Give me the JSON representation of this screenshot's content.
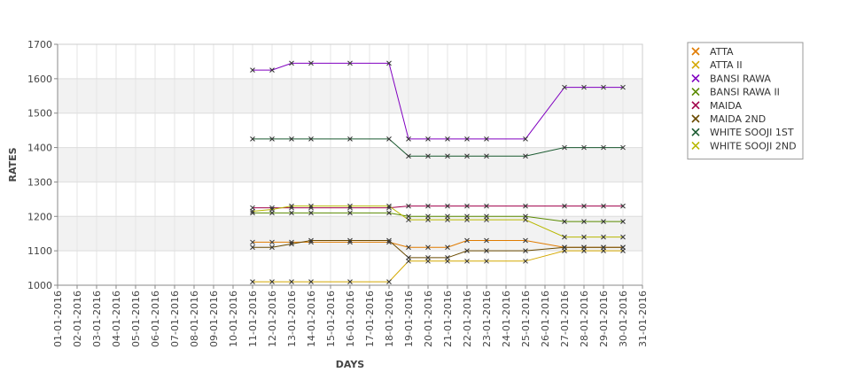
{
  "chart_data": {
    "type": "line",
    "title": "",
    "xlabel": "DAYS",
    "ylabel": "RATES",
    "ylim": [
      1000,
      1700
    ],
    "yticks": [
      1000,
      1100,
      1200,
      1300,
      1400,
      1500,
      1600,
      1700
    ],
    "grid": "horizontal bands",
    "legend": "right",
    "x": [
      "01-01-2016",
      "02-01-2016",
      "03-01-2016",
      "04-01-2016",
      "05-01-2016",
      "06-01-2016",
      "07-01-2016",
      "08-01-2016",
      "09-01-2016",
      "10-01-2016",
      "11-01-2016",
      "12-01-2016",
      "13-01-2016",
      "14-01-2016",
      "15-01-2016",
      "16-01-2016",
      "17-01-2016",
      "18-01-2016",
      "19-01-2016",
      "20-01-2016",
      "21-01-2016",
      "22-01-2016",
      "23-01-2016",
      "24-01-2016",
      "25-01-2016",
      "26-01-2016",
      "27-01-2016",
      "28-01-2016",
      "29-01-2016",
      "30-01-2016",
      "31-01-2016"
    ],
    "series": [
      {
        "name": "ATTA",
        "color": "#e07b00",
        "points": [
          [
            "11-01-2016",
            1125
          ],
          [
            "12-01-2016",
            1125
          ],
          [
            "13-01-2016",
            1125
          ],
          [
            "14-01-2016",
            1125
          ],
          [
            "16-01-2016",
            1125
          ],
          [
            "18-01-2016",
            1125
          ],
          [
            "19-01-2016",
            1110
          ],
          [
            "20-01-2016",
            1110
          ],
          [
            "21-01-2016",
            1110
          ],
          [
            "22-01-2016",
            1130
          ],
          [
            "23-01-2016",
            1130
          ],
          [
            "25-01-2016",
            1130
          ],
          [
            "27-01-2016",
            1110
          ],
          [
            "28-01-2016",
            1110
          ],
          [
            "29-01-2016",
            1110
          ],
          [
            "30-01-2016",
            1110
          ]
        ]
      },
      {
        "name": "ATTA II",
        "color": "#d4a800",
        "points": [
          [
            "11-01-2016",
            1010
          ],
          [
            "12-01-2016",
            1010
          ],
          [
            "13-01-2016",
            1010
          ],
          [
            "14-01-2016",
            1010
          ],
          [
            "16-01-2016",
            1010
          ],
          [
            "18-01-2016",
            1010
          ],
          [
            "19-01-2016",
            1070
          ],
          [
            "20-01-2016",
            1070
          ],
          [
            "21-01-2016",
            1070
          ],
          [
            "22-01-2016",
            1070
          ],
          [
            "23-01-2016",
            1070
          ],
          [
            "25-01-2016",
            1070
          ],
          [
            "27-01-2016",
            1100
          ],
          [
            "28-01-2016",
            1100
          ],
          [
            "29-01-2016",
            1100
          ],
          [
            "30-01-2016",
            1100
          ]
        ]
      },
      {
        "name": "BANSI RAWA",
        "color": "#8000c0",
        "points": [
          [
            "11-01-2016",
            1625
          ],
          [
            "12-01-2016",
            1625
          ],
          [
            "13-01-2016",
            1645
          ],
          [
            "14-01-2016",
            1645
          ],
          [
            "16-01-2016",
            1645
          ],
          [
            "18-01-2016",
            1645
          ],
          [
            "19-01-2016",
            1425
          ],
          [
            "20-01-2016",
            1425
          ],
          [
            "21-01-2016",
            1425
          ],
          [
            "22-01-2016",
            1425
          ],
          [
            "23-01-2016",
            1425
          ],
          [
            "25-01-2016",
            1425
          ],
          [
            "27-01-2016",
            1575
          ],
          [
            "28-01-2016",
            1575
          ],
          [
            "29-01-2016",
            1575
          ],
          [
            "30-01-2016",
            1575
          ]
        ]
      },
      {
        "name": "BANSI RAWA II",
        "color": "#5a8a00",
        "points": [
          [
            "11-01-2016",
            1210
          ],
          [
            "12-01-2016",
            1210
          ],
          [
            "13-01-2016",
            1210
          ],
          [
            "14-01-2016",
            1210
          ],
          [
            "16-01-2016",
            1210
          ],
          [
            "18-01-2016",
            1210
          ],
          [
            "19-01-2016",
            1200
          ],
          [
            "20-01-2016",
            1200
          ],
          [
            "21-01-2016",
            1200
          ],
          [
            "22-01-2016",
            1200
          ],
          [
            "23-01-2016",
            1200
          ],
          [
            "25-01-2016",
            1200
          ],
          [
            "27-01-2016",
            1185
          ],
          [
            "28-01-2016",
            1185
          ],
          [
            "29-01-2016",
            1185
          ],
          [
            "30-01-2016",
            1185
          ]
        ]
      },
      {
        "name": "MAIDA",
        "color": "#a0004a",
        "points": [
          [
            "11-01-2016",
            1225
          ],
          [
            "12-01-2016",
            1225
          ],
          [
            "13-01-2016",
            1225
          ],
          [
            "14-01-2016",
            1225
          ],
          [
            "16-01-2016",
            1225
          ],
          [
            "18-01-2016",
            1225
          ],
          [
            "19-01-2016",
            1230
          ],
          [
            "20-01-2016",
            1230
          ],
          [
            "21-01-2016",
            1230
          ],
          [
            "22-01-2016",
            1230
          ],
          [
            "23-01-2016",
            1230
          ],
          [
            "25-01-2016",
            1230
          ],
          [
            "27-01-2016",
            1230
          ],
          [
            "28-01-2016",
            1230
          ],
          [
            "29-01-2016",
            1230
          ],
          [
            "30-01-2016",
            1230
          ]
        ]
      },
      {
        "name": "MAIDA 2ND",
        "color": "#6a4a00",
        "points": [
          [
            "11-01-2016",
            1110
          ],
          [
            "12-01-2016",
            1110
          ],
          [
            "13-01-2016",
            1120
          ],
          [
            "14-01-2016",
            1130
          ],
          [
            "16-01-2016",
            1130
          ],
          [
            "18-01-2016",
            1130
          ],
          [
            "19-01-2016",
            1080
          ],
          [
            "20-01-2016",
            1080
          ],
          [
            "21-01-2016",
            1080
          ],
          [
            "22-01-2016",
            1100
          ],
          [
            "23-01-2016",
            1100
          ],
          [
            "25-01-2016",
            1100
          ],
          [
            "27-01-2016",
            1110
          ],
          [
            "28-01-2016",
            1110
          ],
          [
            "29-01-2016",
            1110
          ],
          [
            "30-01-2016",
            1110
          ]
        ]
      },
      {
        "name": "WHITE SOOJI 1ST",
        "color": "#1a5a30",
        "points": [
          [
            "11-01-2016",
            1425
          ],
          [
            "12-01-2016",
            1425
          ],
          [
            "13-01-2016",
            1425
          ],
          [
            "14-01-2016",
            1425
          ],
          [
            "16-01-2016",
            1425
          ],
          [
            "18-01-2016",
            1425
          ],
          [
            "19-01-2016",
            1375
          ],
          [
            "20-01-2016",
            1375
          ],
          [
            "21-01-2016",
            1375
          ],
          [
            "22-01-2016",
            1375
          ],
          [
            "23-01-2016",
            1375
          ],
          [
            "25-01-2016",
            1375
          ],
          [
            "27-01-2016",
            1400
          ],
          [
            "28-01-2016",
            1400
          ],
          [
            "29-01-2016",
            1400
          ],
          [
            "30-01-2016",
            1400
          ]
        ]
      },
      {
        "name": "WHITE SOOJI 2ND",
        "color": "#b8b800",
        "points": [
          [
            "11-01-2016",
            1215
          ],
          [
            "12-01-2016",
            1220
          ],
          [
            "13-01-2016",
            1230
          ],
          [
            "14-01-2016",
            1230
          ],
          [
            "16-01-2016",
            1230
          ],
          [
            "18-01-2016",
            1230
          ],
          [
            "19-01-2016",
            1190
          ],
          [
            "20-01-2016",
            1190
          ],
          [
            "21-01-2016",
            1190
          ],
          [
            "22-01-2016",
            1190
          ],
          [
            "23-01-2016",
            1190
          ],
          [
            "25-01-2016",
            1190
          ],
          [
            "27-01-2016",
            1140
          ],
          [
            "28-01-2016",
            1140
          ],
          [
            "29-01-2016",
            1140
          ],
          [
            "30-01-2016",
            1140
          ]
        ]
      }
    ]
  }
}
